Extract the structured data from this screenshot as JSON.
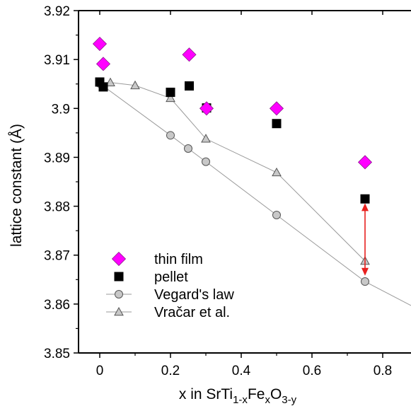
{
  "chart_data": {
    "type": "scatter",
    "xlabel_parts": {
      "prefix": "x in SrTi",
      "sub1": "1-x",
      "mid1": "Fe",
      "sub2": "x",
      "mid2": "O",
      "sub3": "3-y"
    },
    "ylabel": "lattice constant (Å)",
    "xlim": [
      -0.06,
      0.88
    ],
    "ylim": [
      3.85,
      3.92
    ],
    "xticks": [
      0,
      0.2,
      0.4,
      0.6,
      0.8
    ],
    "xtick_labels": [
      "0",
      "0.2",
      "0.4",
      "0.6",
      "0.8"
    ],
    "yticks": [
      3.85,
      3.86,
      3.87,
      3.88,
      3.89,
      3.9,
      3.91,
      3.92
    ],
    "ytick_labels": [
      "3.85",
      "3.86",
      "3.87",
      "3.88",
      "3.89",
      "3.9",
      "3.91",
      "3.92"
    ],
    "legend_position": "bottom-left",
    "series": [
      {
        "name": "thin film",
        "marker": "diamond",
        "color": "#ff00ff",
        "line": false,
        "points": [
          [
            0.0,
            3.9132
          ],
          [
            0.01,
            3.9091
          ],
          [
            0.253,
            3.911
          ],
          [
            0.302,
            3.9
          ],
          [
            0.5,
            3.9
          ],
          [
            0.75,
            3.889
          ]
        ]
      },
      {
        "name": "pellet",
        "marker": "square",
        "color": "#000000",
        "line": false,
        "points": [
          [
            0.0,
            3.9054
          ],
          [
            0.01,
            3.9044
          ],
          [
            0.2,
            3.9033
          ],
          [
            0.253,
            3.9046
          ],
          [
            0.302,
            3.9001
          ],
          [
            0.5,
            3.8969
          ],
          [
            0.75,
            3.8815
          ]
        ]
      },
      {
        "name": "Vegard's law",
        "marker": "circle",
        "color": "#c8c8c8",
        "line": true,
        "points": [
          [
            0.0,
            3.9051
          ],
          [
            0.2,
            3.8945
          ],
          [
            0.25,
            3.8918
          ],
          [
            0.3,
            3.8891
          ],
          [
            0.5,
            3.8782
          ],
          [
            0.75,
            3.8646
          ],
          [
            0.88,
            3.8597
          ]
        ]
      },
      {
        "name": "Vračar et al.",
        "marker": "triangle",
        "color": "#c8c8c8",
        "line": true,
        "points": [
          [
            0.03,
            3.9053
          ],
          [
            0.1,
            3.9047
          ],
          [
            0.2,
            3.9021
          ],
          [
            0.3,
            3.8938
          ],
          [
            0.5,
            3.8869
          ],
          [
            0.75,
            3.8688
          ]
        ]
      }
    ],
    "annotation": {
      "type": "double-arrow",
      "color": "#e8201e",
      "x": 0.75,
      "y_from": 3.8806,
      "y_to": 3.8658
    }
  }
}
